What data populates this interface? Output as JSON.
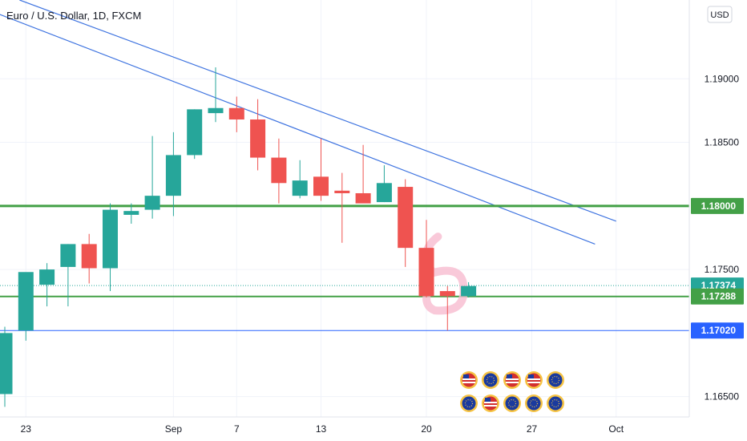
{
  "header": {
    "title": "Euro / U.S. Dollar, 1D, FXCM"
  },
  "currency_button": {
    "label": "USD"
  },
  "colors": {
    "up": "#26a69a",
    "down": "#ef5350",
    "green_line": "#43a047",
    "blue_line": "#2962ff",
    "trend_line": "#3f74e0",
    "highlight": "#f8bbd0"
  },
  "price_labels": [
    {
      "text": "1.18000",
      "price": 1.18,
      "color": "#43a047"
    },
    {
      "text": "1.17374",
      "price": 1.17374,
      "color": "#26a69a"
    },
    {
      "text": "1.17288",
      "price": 1.17288,
      "color": "#43a047"
    },
    {
      "text": "1.17020",
      "price": 1.1702,
      "color": "#2962ff"
    }
  ],
  "event_icons": [
    {
      "name": "us-flag-icon",
      "label": "US",
      "color": "#d32f2f"
    },
    {
      "name": "eu-flag-icon",
      "label": "EU",
      "color": "#1a3a9e"
    },
    {
      "name": "us-flag-icon",
      "label": "US",
      "color": "#d32f2f"
    },
    {
      "name": "us-flag-icon",
      "label": "US",
      "color": "#d32f2f"
    },
    {
      "name": "eu-flag-icon",
      "label": "EU",
      "color": "#1a3a9e"
    },
    {
      "name": "eu-flag-icon",
      "label": "EU",
      "color": "#1a3a9e"
    },
    {
      "name": "us-flag-icon",
      "label": "US",
      "color": "#d32f2f"
    },
    {
      "name": "eu-flag-icon",
      "label": "EU",
      "color": "#1a3a9e"
    },
    {
      "name": "eu-flag-icon",
      "label": "EU",
      "color": "#1a3a9e"
    },
    {
      "name": "eu-flag-icon",
      "label": "EU",
      "color": "#1a3a9e"
    }
  ],
  "chart_data": {
    "type": "candlestick",
    "symbol": "Euro / U.S. Dollar",
    "interval": "1D",
    "source": "FXCM",
    "y_ticks": [
      1.19,
      1.185,
      1.175,
      1.165
    ],
    "y_tick_labels": [
      "1.19000",
      "1.18500",
      "1.17500",
      "1.16500"
    ],
    "ylim": [
      1.1634,
      1.1962
    ],
    "x_ticks": [
      {
        "label": "23",
        "index": 1
      },
      {
        "label": "Sep",
        "index": 8
      },
      {
        "label": "7",
        "index": 11
      },
      {
        "label": "13",
        "index": 15
      },
      {
        "label": "20",
        "index": 20
      },
      {
        "label": "27",
        "index": 25
      },
      {
        "label": "Oct",
        "index": 29
      }
    ],
    "candles": [
      {
        "open": 1.1652,
        "high": 1.1705,
        "low": 1.1642,
        "close": 1.17
      },
      {
        "open": 1.1702,
        "high": 1.1746,
        "low": 1.1694,
        "close": 1.1748
      },
      {
        "open": 1.1738,
        "high": 1.1755,
        "low": 1.1721,
        "close": 1.175
      },
      {
        "open": 1.1752,
        "high": 1.177,
        "low": 1.1721,
        "close": 1.177
      },
      {
        "open": 1.177,
        "high": 1.1778,
        "low": 1.1739,
        "close": 1.1751
      },
      {
        "open": 1.1751,
        "high": 1.1802,
        "low": 1.1733,
        "close": 1.1797
      },
      {
        "open": 1.1793,
        "high": 1.1802,
        "low": 1.1786,
        "close": 1.1796
      },
      {
        "open": 1.1797,
        "high": 1.1855,
        "low": 1.179,
        "close": 1.1808
      },
      {
        "open": 1.1808,
        "high": 1.1858,
        "low": 1.1792,
        "close": 1.184
      },
      {
        "open": 1.184,
        "high": 1.1876,
        "low": 1.1837,
        "close": 1.1876
      },
      {
        "open": 1.1873,
        "high": 1.1909,
        "low": 1.1866,
        "close": 1.1877
      },
      {
        "open": 1.1877,
        "high": 1.1886,
        "low": 1.1858,
        "close": 1.1868
      },
      {
        "open": 1.1868,
        "high": 1.1884,
        "low": 1.1828,
        "close": 1.1838
      },
      {
        "open": 1.1838,
        "high": 1.1853,
        "low": 1.1802,
        "close": 1.1818
      },
      {
        "open": 1.1808,
        "high": 1.1836,
        "low": 1.1806,
        "close": 1.182
      },
      {
        "open": 1.1823,
        "high": 1.1853,
        "low": 1.1804,
        "close": 1.1808
      },
      {
        "open": 1.1812,
        "high": 1.1826,
        "low": 1.1771,
        "close": 1.181
      },
      {
        "open": 1.181,
        "high": 1.1848,
        "low": 1.1803,
        "close": 1.1802
      },
      {
        "open": 1.1803,
        "high": 1.1832,
        "low": 1.1803,
        "close": 1.1818
      },
      {
        "open": 1.1815,
        "high": 1.1821,
        "low": 1.1752,
        "close": 1.1767
      },
      {
        "open": 1.1767,
        "high": 1.1789,
        "low": 1.1728,
        "close": 1.1729
      },
      {
        "open": 1.1733,
        "high": 1.1737,
        "low": 1.1702,
        "close": 1.1729
      },
      {
        "open": 1.1729,
        "high": 1.174,
        "low": 1.1728,
        "close": 1.1737
      }
    ],
    "horizontal_lines": [
      {
        "price": 1.18,
        "color": "#43a047",
        "width": 3
      },
      {
        "price": 1.17288,
        "color": "#43a047",
        "width": 2
      },
      {
        "price": 1.1702,
        "color": "#2962ff",
        "width": 1
      }
    ],
    "last_price_line": {
      "price": 1.17374,
      "color": "#26a69a",
      "style": "dotted"
    },
    "trend_lines": [
      {
        "from": {
          "index": 0.7,
          "price": 1.1962
        },
        "to": {
          "index": 29,
          "price": 1.1788
        }
      },
      {
        "from": {
          "index": -0.3,
          "price": 1.1951
        },
        "to": {
          "index": 28,
          "price": 1.177
        }
      }
    ],
    "highlight": {
      "index": 20.7,
      "price": 1.1738,
      "shape": "b-marker"
    },
    "grid": true
  }
}
